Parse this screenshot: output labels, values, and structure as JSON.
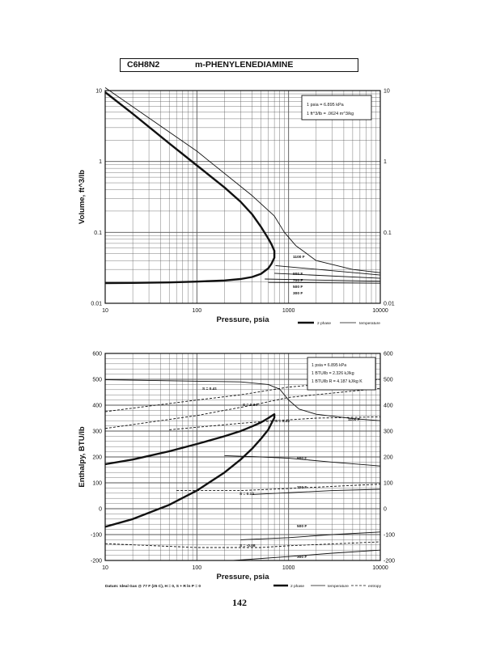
{
  "header": {
    "formula": "C6H8N2",
    "compound": "m-PHENYLENEDIAMINE"
  },
  "page_number": "142",
  "chart_data": [
    {
      "type": "line",
      "xscale": "log",
      "yscale": "log",
      "xlim": [
        10,
        10000
      ],
      "ylim": [
        0.01,
        10
      ],
      "xlabel": "Pressure,  psia",
      "ylabel": "Volume, ft^3/lb",
      "x_ticks": [
        "10",
        "100",
        "1000",
        "10000"
      ],
      "y_ticks": [
        "0.01",
        "0.1",
        "1",
        "10"
      ],
      "grid": true,
      "conversion_box": [
        "1 psia  =  6.895 kPa",
        "1 ft^3/lb  =  .0624 m^3/kg"
      ],
      "legend": [
        "2 phase",
        "temperature"
      ],
      "series": [
        {
          "name": "2 phase",
          "style": "thick",
          "x": [
            10,
            20,
            50,
            100,
            200,
            300,
            400,
            500,
            600,
            650,
            700,
            700,
            650,
            600,
            500,
            400,
            300,
            200,
            100,
            50,
            20,
            10
          ],
          "y": [
            9.5,
            4.7,
            1.8,
            0.88,
            0.43,
            0.27,
            0.18,
            0.12,
            0.082,
            0.068,
            0.055,
            0.044,
            0.036,
            0.031,
            0.026,
            0.0235,
            0.022,
            0.021,
            0.0202,
            0.0197,
            0.0194,
            0.0193
          ]
        },
        {
          "label": "300 F",
          "x": [
            600,
            10000
          ],
          "y": [
            0.0197,
            0.0192
          ]
        },
        {
          "label": "500 F",
          "x": [
            550,
            10000
          ],
          "y": [
            0.022,
            0.0205
          ]
        },
        {
          "label": "700 F",
          "x": [
            700,
            10000
          ],
          "y": [
            0.0265,
            0.0225
          ]
        },
        {
          "label": "900 F",
          "x": [
            720,
            10000
          ],
          "y": [
            0.034,
            0.025
          ]
        },
        {
          "label": "1100 F",
          "x": [
            10,
            100,
            400,
            700,
            900,
            1200,
            2000,
            5000,
            10000
          ],
          "y": [
            11,
            1.4,
            0.33,
            0.17,
            0.1,
            0.065,
            0.04,
            0.03,
            0.027
          ]
        }
      ]
    },
    {
      "type": "line",
      "xscale": "log",
      "xlim": [
        10,
        10000
      ],
      "ylim": [
        -200,
        600
      ],
      "xlabel": "Pressure,  psia",
      "ylabel": "Enthalpy, BTU/lb",
      "x_ticks": [
        "10",
        "100",
        "1000",
        "10000"
      ],
      "y_ticks": [
        "-200",
        "-100",
        "0",
        "100",
        "200",
        "300",
        "400",
        "500",
        "600"
      ],
      "grid": true,
      "conversion_box": [
        "1 psia  =  6.895 kPa",
        "1 BTU/lb  =  2.326 kJ/kg",
        "1 BTU/lb R  =  4.187 kJ/kg K"
      ],
      "footnote": "Datum: Ideal Gas @ 77 F (25 C),  H = 0,  S + R ln P = 0",
      "legend": [
        "2 phase",
        "temperature",
        "entropy"
      ],
      "series": [
        {
          "name": "2 phase",
          "style": "thick",
          "x": [
            10,
            20,
            50,
            100,
            200,
            300,
            400,
            500,
            600,
            650,
            700,
            700,
            650,
            600,
            500,
            400,
            300,
            200,
            100,
            50,
            20,
            10
          ],
          "y": [
            172,
            190,
            222,
            250,
            280,
            300,
            318,
            333,
            350,
            358,
            365,
            352,
            330,
            305,
            270,
            232,
            190,
            140,
            70,
            15,
            -40,
            -70
          ]
        },
        {
          "name": "1100 F",
          "x": [
            10,
            300,
            600,
            800,
            1000,
            1300,
            2000,
            5000,
            10000
          ],
          "y": [
            498,
            490,
            480,
            462,
            420,
            385,
            365,
            348,
            340
          ]
        },
        {
          "name": "900 F",
          "x": [
            200,
            500,
            1000,
            3000,
            10000
          ],
          "y": [
            205,
            200,
            195,
            180,
            165
          ]
        },
        {
          "name": "700 F",
          "x": [
            400,
            1000,
            3000,
            10000
          ],
          "y": [
            55,
            62,
            70,
            75
          ]
        },
        {
          "name": "500 F",
          "x": [
            300,
            1000,
            3000,
            10000
          ],
          "y": [
            -120,
            -112,
            -100,
            -90
          ]
        },
        {
          "name": "300 F",
          "x": [
            250,
            1000,
            3000,
            10000
          ],
          "y": [
            -200,
            -185,
            -172,
            -160
          ]
        },
        {
          "name": "S = 0.41",
          "style": "dashed",
          "x": [
            10,
            100,
            300,
            1000,
            10000
          ],
          "y": [
            375,
            420,
            440,
            470,
            500
          ]
        },
        {
          "name": "S = 0.34",
          "style": "dashed",
          "x": [
            10,
            100,
            400,
            1000,
            10000
          ],
          "y": [
            310,
            360,
            400,
            430,
            465
          ]
        },
        {
          "name": "S = 0.32",
          "style": "dashed",
          "x": [
            50,
            300,
            700,
            2000,
            10000
          ],
          "y": [
            305,
            330,
            340,
            350,
            355
          ]
        },
        {
          "name": "S = 0.12",
          "style": "dashed",
          "x": [
            60,
            300,
            1000,
            10000
          ],
          "y": [
            70,
            70,
            78,
            95
          ]
        },
        {
          "name": "S = -0.08",
          "style": "dashed",
          "x": [
            10,
            100,
            500,
            1000,
            10000
          ],
          "y": [
            -135,
            -150,
            -150,
            -143,
            -128
          ]
        }
      ]
    }
  ],
  "labels": {
    "volume": {
      "t300": "300 F",
      "t500": "500 F",
      "t700": "700 F",
      "t900": "900 F",
      "t1100": "1100 F"
    },
    "enthalpy": {
      "t300": "300 F",
      "t500": "500 F",
      "t700": "700 F",
      "t900": "900 F",
      "t1100": "1100 F",
      "s041": "S = 0.41",
      "s034": "S = 0.34",
      "s032": "S = 0.32",
      "s012": "S = 0.12",
      "sm008": "S = -0.08"
    }
  },
  "colors": {
    "ink": "#111111",
    "grid": "#555555"
  }
}
